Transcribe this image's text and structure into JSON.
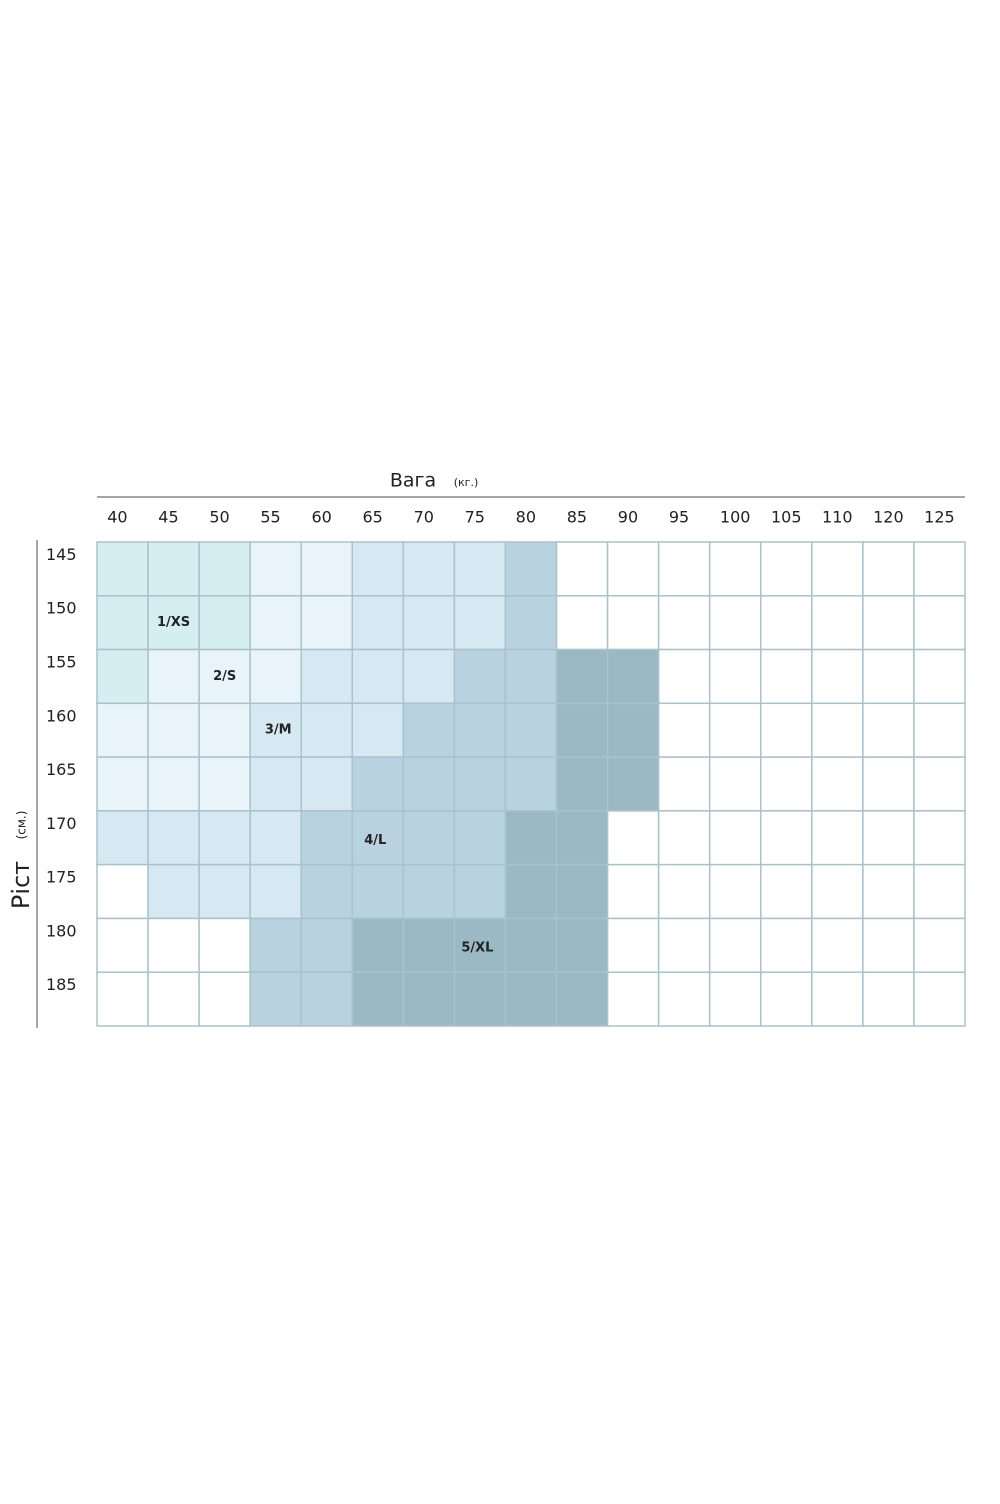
{
  "header": {
    "title": "Вага",
    "unit": "(кг.)"
  },
  "side": {
    "title": "Ріст",
    "unit": "(см.)"
  },
  "weights": [
    40,
    45,
    50,
    55,
    60,
    65,
    70,
    75,
    80,
    85,
    90,
    95,
    100,
    105,
    110,
    120,
    125
  ],
  "heights": [
    145,
    150,
    155,
    160,
    165,
    170,
    175,
    180,
    185
  ],
  "sizes": [
    {
      "label": "1/XS",
      "color": "#d5eef2"
    },
    {
      "label": "2/S",
      "color": "#e8f4f9"
    },
    {
      "label": "3/M",
      "color": "#d6e8f1"
    },
    {
      "label": "4/L",
      "color": "#b8d3df"
    },
    {
      "label": "5/XL",
      "color": "#9ab9c4"
    }
  ],
  "cells": [
    [
      "1/XS",
      "1/XS",
      "1/XS",
      "2/S",
      "2/S",
      "3/M",
      "3/M",
      "3/M",
      "4/L",
      null,
      null,
      null,
      null,
      null,
      null,
      null,
      null
    ],
    [
      "1/XS",
      "1/XS",
      "1/XS",
      "2/S",
      "2/S",
      "3/M",
      "3/M",
      "3/M",
      "4/L",
      null,
      null,
      null,
      null,
      null,
      null,
      null,
      null
    ],
    [
      "1/XS",
      "2/S",
      "2/S",
      "2/S",
      "3/M",
      "3/M",
      "3/M",
      "4/L",
      "4/L",
      "5/XL",
      "5/XL",
      null,
      null,
      null,
      null,
      null,
      null
    ],
    [
      "2/S",
      "2/S",
      "2/S",
      "3/M",
      "3/M",
      "3/M",
      "4/L",
      "4/L",
      "4/L",
      "5/XL",
      "5/XL",
      null,
      null,
      null,
      null,
      null,
      null
    ],
    [
      "2/S",
      "2/S",
      "2/S",
      "3/M",
      "3/M",
      "4/L",
      "4/L",
      "4/L",
      "4/L",
      "5/XL",
      "5/XL",
      null,
      null,
      null,
      null,
      null,
      null
    ],
    [
      "3/M",
      "3/M",
      "3/M",
      "3/M",
      "4/L",
      "4/L",
      "4/L",
      "4/L",
      "5/XL",
      "5/XL",
      null,
      null,
      null,
      null,
      null,
      null,
      null
    ],
    [
      null,
      "3/M",
      "3/M",
      "3/M",
      "4/L",
      "4/L",
      "4/L",
      "4/L",
      "5/XL",
      "5/XL",
      null,
      null,
      null,
      null,
      null,
      null,
      null
    ],
    [
      null,
      null,
      null,
      "4/L",
      "4/L",
      "5/XL",
      "5/XL",
      "5/XL",
      "5/XL",
      "5/XL",
      null,
      null,
      null,
      null,
      null,
      null,
      null
    ],
    [
      null,
      null,
      null,
      "4/L",
      "4/L",
      "5/XL",
      "5/XL",
      "5/XL",
      "5/XL",
      "5/XL",
      null,
      null,
      null,
      null,
      null,
      null,
      null
    ]
  ]
}
